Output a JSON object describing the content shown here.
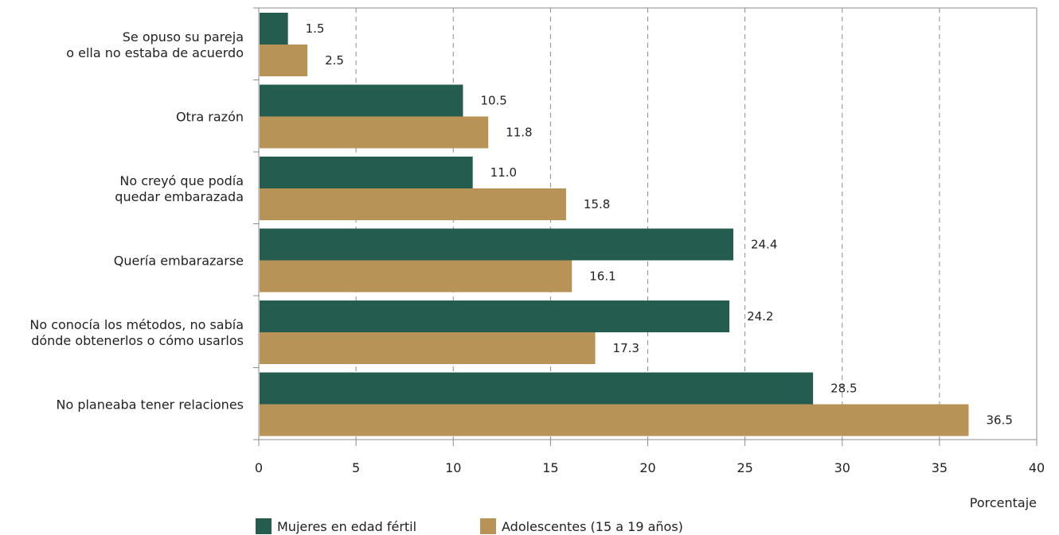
{
  "chart_data": {
    "type": "bar",
    "orientation": "horizontal",
    "categories": [
      [
        "Se opuso su pareja",
        "o ella no estaba de acuerdo"
      ],
      [
        "Otra razón"
      ],
      [
        "No creyó que podía",
        "quedar embarazada"
      ],
      [
        "Quería embarazarse"
      ],
      [
        "No conocía los métodos, no sabía",
        "dónde obtenerlos o cómo usarlos"
      ],
      [
        "No planeaba tener relaciones"
      ]
    ],
    "series": [
      {
        "name": "Mujeres en edad fértil",
        "color": "#245C4F",
        "values": [
          1.5,
          10.5,
          11.0,
          24.4,
          24.2,
          28.5
        ],
        "labels": [
          "1.5",
          "10.5",
          "11.0",
          "24.4",
          "24.2",
          "28.5"
        ]
      },
      {
        "name": "Adolescentes (15 a 19 años)",
        "color": "#B89357",
        "values": [
          2.5,
          11.8,
          15.8,
          16.1,
          17.3,
          36.5
        ],
        "labels": [
          "2.5",
          "11.8",
          "15.8",
          "16.1",
          "17.3",
          "36.5"
        ]
      }
    ],
    "xlim": [
      0,
      40
    ],
    "xticks": [
      0,
      5,
      10,
      15,
      20,
      25,
      30,
      35,
      40
    ],
    "xlabel": "Porcentaje",
    "ylabel": "",
    "title": "",
    "grid": "vertical dashed",
    "legend_position": "bottom-left"
  }
}
